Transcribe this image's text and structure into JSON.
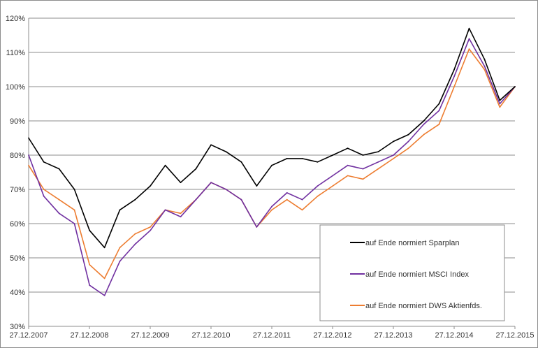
{
  "chart_data": {
    "type": "line",
    "title": "",
    "xlabel": "",
    "ylabel": "",
    "ylim": [
      30,
      120
    ],
    "y_ticks": [
      "30%",
      "40%",
      "50%",
      "60%",
      "70%",
      "80%",
      "90%",
      "100%",
      "110%",
      "120%"
    ],
    "x_ticks": [
      "27.12.2007",
      "27.12.2008",
      "27.12.2009",
      "27.12.2010",
      "27.12.2011",
      "27.12.2012",
      "27.12.2013",
      "27.12.2014",
      "27.12.2015"
    ],
    "grid": "horizontal",
    "legend_placement": "bottom-right",
    "x": [
      "2007-12-27",
      "2008-03-27",
      "2008-06-27",
      "2008-09-27",
      "2008-12-27",
      "2009-03-27",
      "2009-06-27",
      "2009-09-27",
      "2009-12-27",
      "2010-03-27",
      "2010-06-27",
      "2010-09-27",
      "2010-12-27",
      "2011-03-27",
      "2011-06-27",
      "2011-09-27",
      "2011-12-27",
      "2012-03-27",
      "2012-06-27",
      "2012-09-27",
      "2012-12-27",
      "2013-03-27",
      "2013-06-27",
      "2013-09-27",
      "2013-12-27",
      "2014-03-27",
      "2014-06-27",
      "2014-09-27",
      "2014-12-27",
      "2015-03-27",
      "2015-06-27",
      "2015-09-27",
      "2015-12-27"
    ],
    "series": [
      {
        "name": "auf Ende normiert Sparplan",
        "color": "#000000",
        "values": [
          85,
          78,
          76,
          70,
          58,
          53,
          64,
          67,
          71,
          77,
          72,
          76,
          83,
          81,
          78,
          71,
          77,
          79,
          79,
          78,
          80,
          82,
          80,
          81,
          84,
          86,
          90,
          95,
          105,
          117,
          108,
          96,
          100
        ]
      },
      {
        "name": "auf Ende normiert MSCI Index",
        "color": "#7030a0",
        "values": [
          80,
          68,
          63,
          60,
          42,
          39,
          49,
          54,
          58,
          64,
          62,
          67,
          72,
          70,
          67,
          59,
          65,
          69,
          67,
          71,
          74,
          77,
          76,
          78,
          80,
          84,
          89,
          93,
          103,
          114,
          106,
          95,
          100
        ]
      },
      {
        "name": "auf Ende normiert DWS Aktienfds.",
        "color": "#ed7d31",
        "values": [
          77,
          70,
          67,
          64,
          48,
          44,
          53,
          57,
          59,
          64,
          63,
          67,
          72,
          70,
          67,
          59,
          64,
          67,
          64,
          68,
          71,
          74,
          73,
          76,
          79,
          82,
          86,
          89,
          100,
          111,
          105,
          94,
          100
        ]
      }
    ]
  }
}
